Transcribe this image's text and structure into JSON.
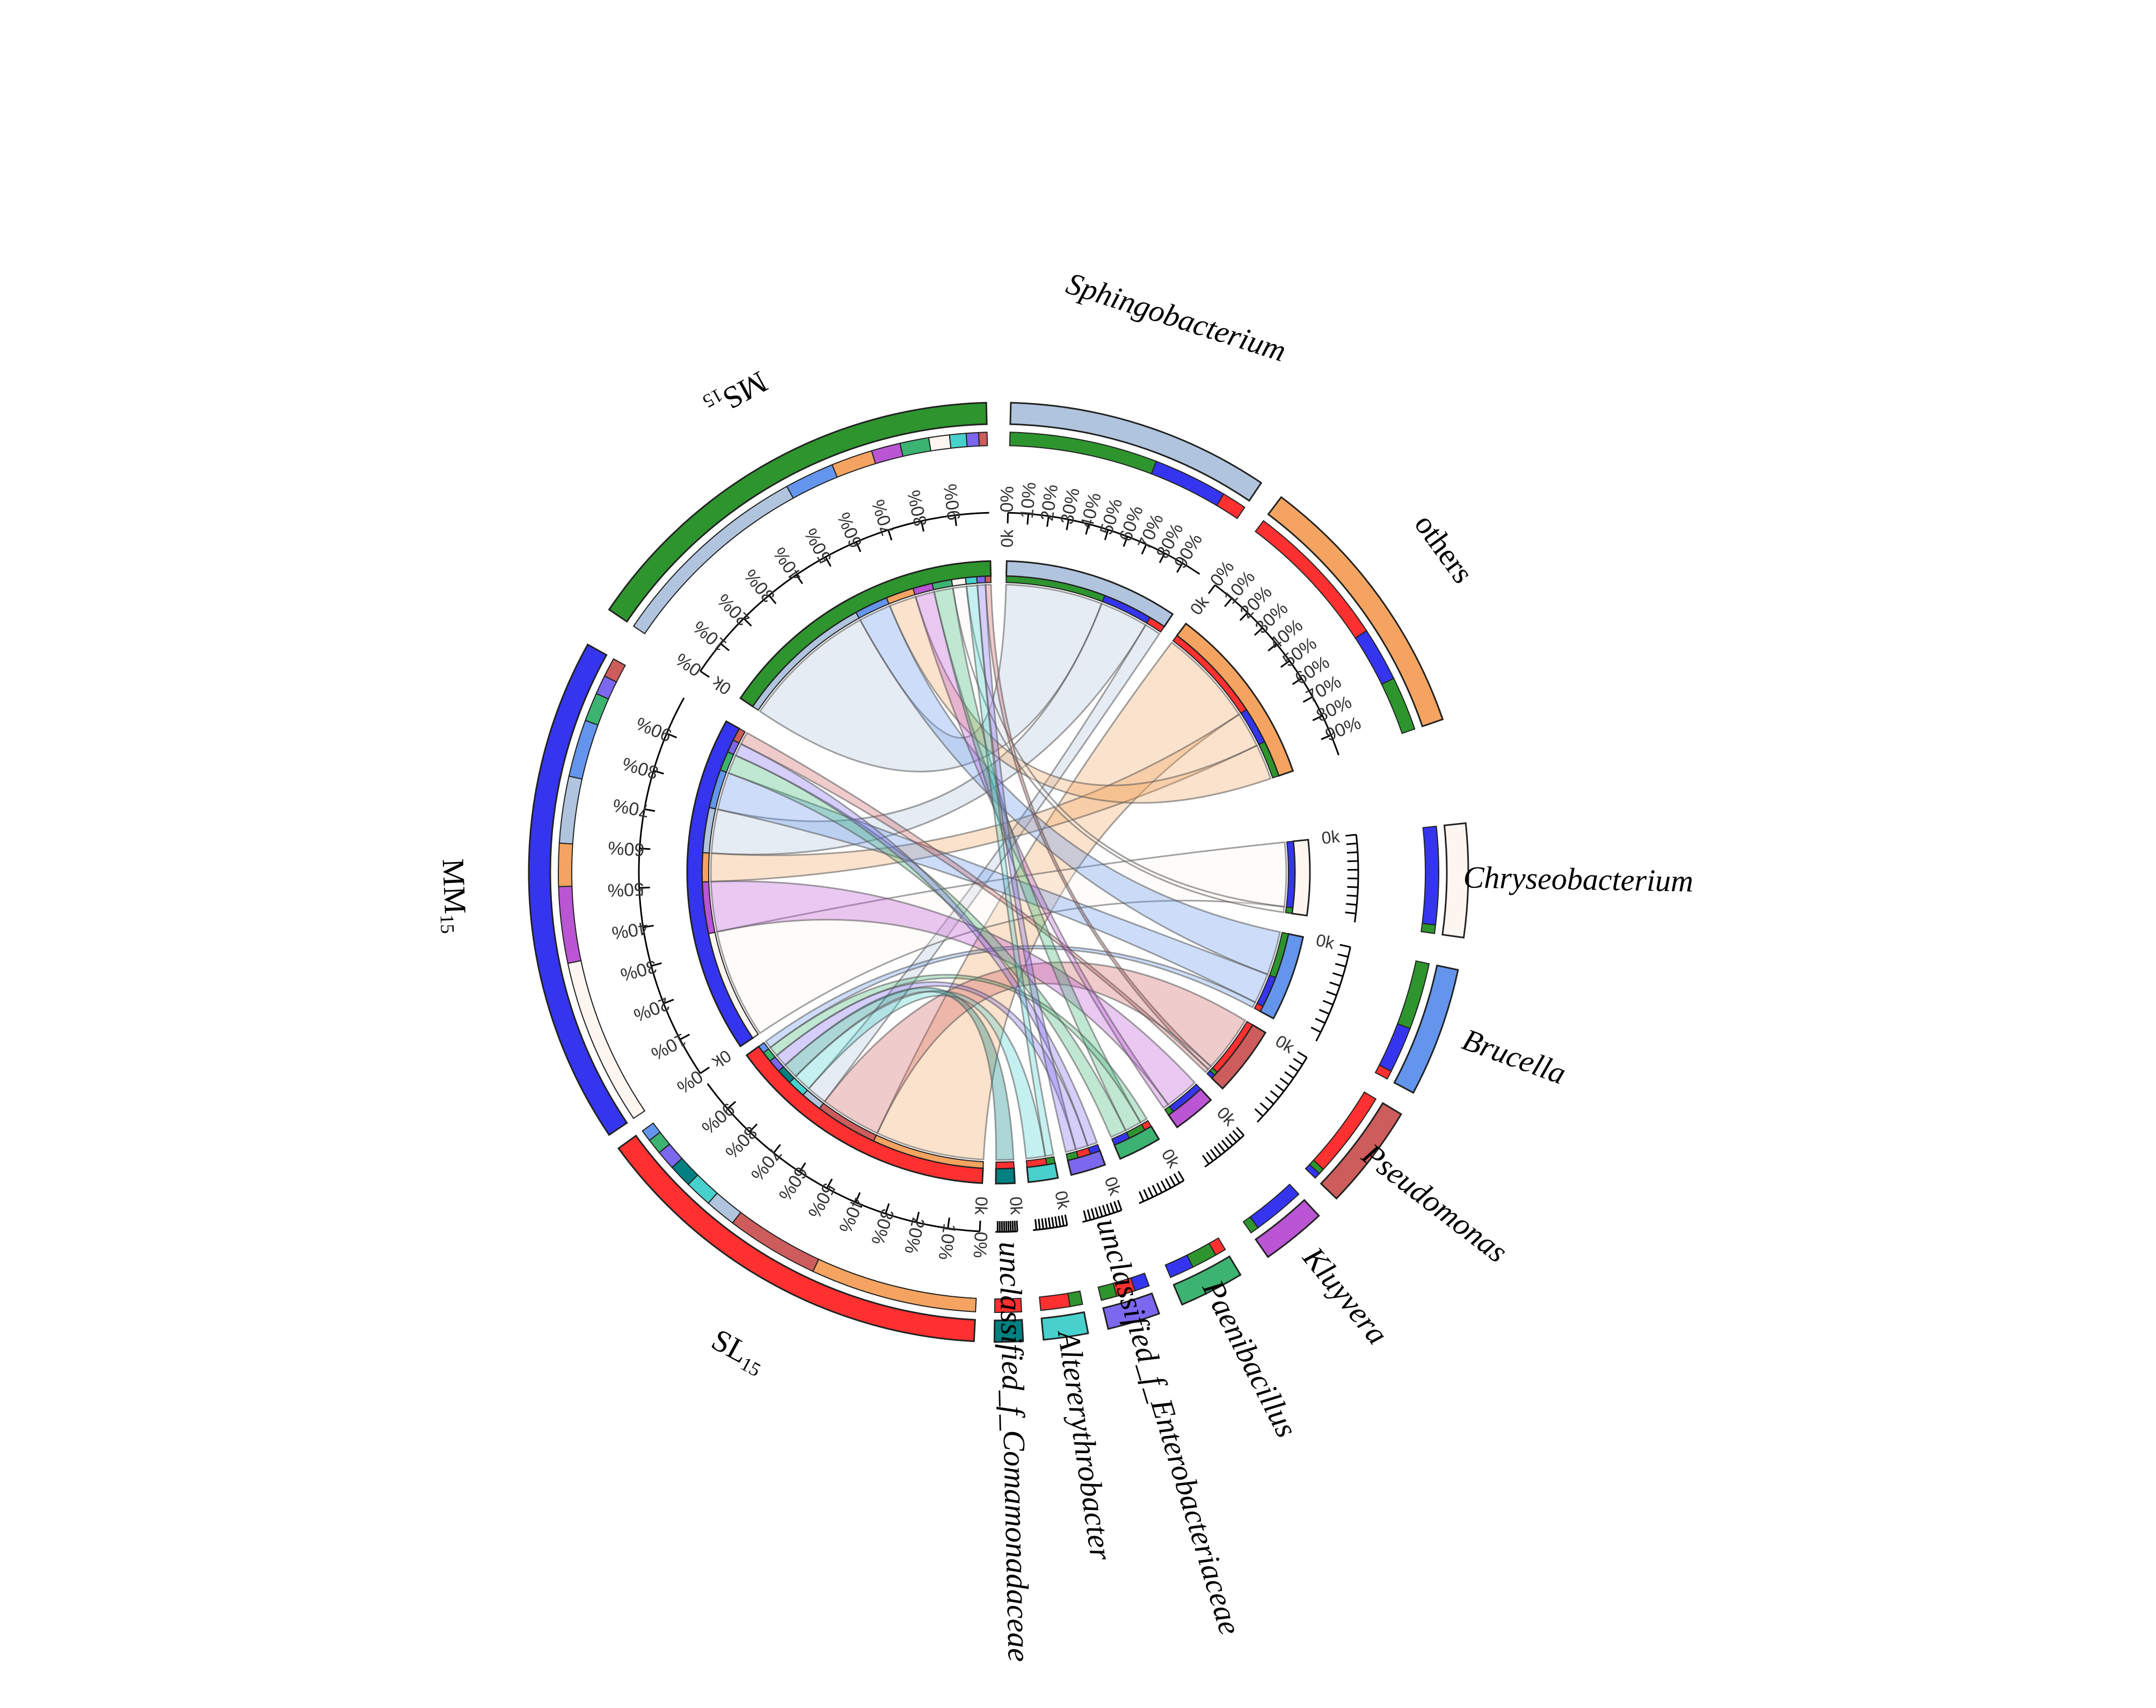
{
  "chart_data": {
    "type": "chord",
    "zero_label": "0k",
    "percent_ticks": [
      "0%",
      "10%",
      "20%",
      "30%",
      "40%",
      "50%",
      "60%",
      "70%",
      "80%",
      "90%"
    ],
    "sample_colors": {
      "SL": "#ff3030",
      "MM": "#3535f0",
      "MS": "#2e952e"
    },
    "sectors": [
      {
        "id": "Sphingobacterium",
        "label": "Sphingobacterium",
        "italic": true,
        "color": "#b0c4de",
        "composition": [
          {
            "sample": "MS",
            "value": 0.6
          },
          {
            "sample": "MM",
            "value": 0.3
          },
          {
            "sample": "SL",
            "value": 0.1
          }
        ]
      },
      {
        "id": "others",
        "label": "others",
        "italic": false,
        "color": "#f4a460",
        "composition": [
          {
            "sample": "SL",
            "value": 0.58
          },
          {
            "sample": "MM",
            "value": 0.21
          },
          {
            "sample": "MS",
            "value": 0.21
          }
        ]
      },
      {
        "id": "Chryseobacterium",
        "label": "Chryseobacterium",
        "italic": true,
        "color": "#fdf5f0",
        "composition": [
          {
            "sample": "MM",
            "value": 0.92
          },
          {
            "sample": "MS",
            "value": 0.08
          }
        ]
      },
      {
        "id": "Brucella",
        "label": "Brucella",
        "italic": true,
        "color": "#6495ed",
        "composition": [
          {
            "sample": "MS",
            "value": 0.55
          },
          {
            "sample": "MM",
            "value": 0.38
          },
          {
            "sample": "SL",
            "value": 0.07
          }
        ]
      },
      {
        "id": "Pseudomonas",
        "label": "Pseudomonas",
        "italic": true,
        "color": "#cd5c5c",
        "composition": [
          {
            "sample": "SL",
            "value": 0.88
          },
          {
            "sample": "MS",
            "value": 0.06
          },
          {
            "sample": "MM",
            "value": 0.06
          }
        ]
      },
      {
        "id": "Kluyvera",
        "label": "Kluyvera",
        "italic": true,
        "color": "#ba55d3",
        "composition": [
          {
            "sample": "MM",
            "value": 0.86
          },
          {
            "sample": "MS",
            "value": 0.14
          }
        ]
      },
      {
        "id": "Paenibacillus",
        "label": "Paenibacillus",
        "italic": true,
        "color": "#3cb371",
        "composition": [
          {
            "sample": "SL",
            "value": 0.18
          },
          {
            "sample": "MS",
            "value": 0.42
          },
          {
            "sample": "MM",
            "value": 0.4
          }
        ]
      },
      {
        "id": "unclassified_f_Enterobacteriaceae",
        "label": "unclassified_f_Enterobacteriaceae",
        "italic": true,
        "color": "#7b68ee",
        "composition": [
          {
            "sample": "MM",
            "value": 0.3
          },
          {
            "sample": "SL",
            "value": 0.38
          },
          {
            "sample": "MS",
            "value": 0.32
          }
        ]
      },
      {
        "id": "Altererythrobacter",
        "label": "Altererythrobacter",
        "italic": true,
        "color": "#48d1cc",
        "composition": [
          {
            "sample": "MS",
            "value": 0.3
          },
          {
            "sample": "SL",
            "value": 0.7
          }
        ]
      },
      {
        "id": "unclassified_f_Comamonadaceae",
        "label": "unclassified_f_Comamonadaceae",
        "italic": true,
        "color": "#008080",
        "composition": [
          {
            "sample": "SL",
            "value": 1.0
          }
        ]
      },
      {
        "id": "SL",
        "label": "SL",
        "sub": "15",
        "italic": false,
        "color": "#ff3030",
        "composition": [
          {
            "taxon": "others",
            "value": 0.43
          },
          {
            "taxon": "Pseudomonas",
            "value": 0.24
          },
          {
            "taxon": "Sphingobacterium",
            "value": 0.08
          },
          {
            "taxon": "Altererythrobacter",
            "value": 0.07
          },
          {
            "taxon": "unclassified_f_Comamonadaceae",
            "value": 0.06
          },
          {
            "taxon": "unclassified_f_Enterobacteriaceae",
            "value": 0.05
          },
          {
            "taxon": "Paenibacillus",
            "value": 0.04
          },
          {
            "taxon": "Brucella",
            "value": 0.03
          }
        ]
      },
      {
        "id": "MM",
        "label": "MM",
        "sub": "15",
        "italic": false,
        "color": "#3535f0",
        "composition": [
          {
            "taxon": "Chryseobacterium",
            "value": 0.35
          },
          {
            "taxon": "Kluyvera",
            "value": 0.16
          },
          {
            "taxon": "others",
            "value": 0.09
          },
          {
            "taxon": "Sphingobacterium",
            "value": 0.14
          },
          {
            "taxon": "Brucella",
            "value": 0.12
          },
          {
            "taxon": "Paenibacillus",
            "value": 0.06
          },
          {
            "taxon": "unclassified_f_Enterobacteriaceae",
            "value": 0.04
          },
          {
            "taxon": "Pseudomonas",
            "value": 0.04
          }
        ]
      },
      {
        "id": "MS",
        "label": "MS",
        "sub": "15",
        "italic": false,
        "color": "#2e952e",
        "composition": [
          {
            "taxon": "Sphingobacterium",
            "value": 0.5
          },
          {
            "taxon": "Brucella",
            "value": 0.12
          },
          {
            "taxon": "others",
            "value": 0.1
          },
          {
            "taxon": "Kluyvera",
            "value": 0.07
          },
          {
            "taxon": "Paenibacillus",
            "value": 0.07
          },
          {
            "taxon": "Chryseobacterium",
            "value": 0.05
          },
          {
            "taxon": "Altererythrobacter",
            "value": 0.04
          },
          {
            "taxon": "unclassified_f_Enterobacteriaceae",
            "value": 0.03
          },
          {
            "taxon": "Pseudomonas",
            "value": 0.02
          }
        ]
      }
    ],
    "links": [
      {
        "source": "MS",
        "target": "Sphingobacterium"
      },
      {
        "source": "MM",
        "target": "Sphingobacterium"
      },
      {
        "source": "SL",
        "target": "Sphingobacterium"
      },
      {
        "source": "SL",
        "target": "others"
      },
      {
        "source": "MM",
        "target": "others"
      },
      {
        "source": "MS",
        "target": "others"
      },
      {
        "source": "MM",
        "target": "Chryseobacterium"
      },
      {
        "source": "MS",
        "target": "Chryseobacterium"
      },
      {
        "source": "MS",
        "target": "Brucella"
      },
      {
        "source": "MM",
        "target": "Brucella"
      },
      {
        "source": "SL",
        "target": "Brucella"
      },
      {
        "source": "SL",
        "target": "Pseudomonas"
      },
      {
        "source": "MM",
        "target": "Pseudomonas"
      },
      {
        "source": "MS",
        "target": "Pseudomonas"
      },
      {
        "source": "MM",
        "target": "Kluyvera"
      },
      {
        "source": "MS",
        "target": "Kluyvera"
      },
      {
        "source": "MS",
        "target": "Paenibacillus"
      },
      {
        "source": "MM",
        "target": "Paenibacillus"
      },
      {
        "source": "SL",
        "target": "Paenibacillus"
      },
      {
        "source": "SL",
        "target": "unclassified_f_Enterobacteriaceae"
      },
      {
        "source": "MM",
        "target": "unclassified_f_Enterobacteriaceae"
      },
      {
        "source": "MS",
        "target": "unclassified_f_Enterobacteriaceae"
      },
      {
        "source": "SL",
        "target": "Altererythrobacter"
      },
      {
        "source": "MS",
        "target": "Altererythrobacter"
      },
      {
        "source": "SL",
        "target": "unclassified_f_Comamonadaceae"
      }
    ]
  }
}
